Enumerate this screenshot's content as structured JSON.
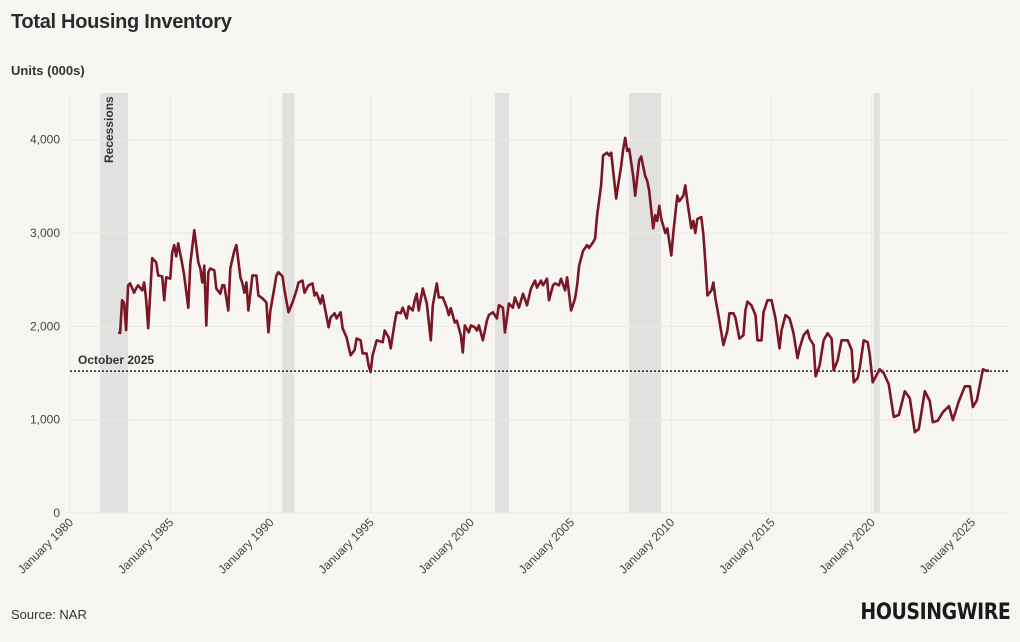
{
  "title": "Total Housing Inventory",
  "source": "Source: NAR",
  "logo": "HOUSINGWIRE",
  "colors": {
    "line": "#7a1626",
    "recession": "#e2e1df",
    "background": "#f7f6f3",
    "grid": "#ebe9e5",
    "reference": "#222222"
  },
  "chart_data": {
    "type": "line",
    "title": "Total Housing Inventory",
    "ylabel": "Units (000s)",
    "xlabel": "",
    "xlim": [
      1980,
      2026.9
    ],
    "ylim": [
      0,
      4500
    ],
    "grid": true,
    "y_ticks": [
      0,
      1000,
      2000,
      3000,
      4000
    ],
    "y_tick_labels": [
      "0",
      "1,000",
      "2,000",
      "3,000",
      "4,000"
    ],
    "x_ticks": [
      1980,
      1985,
      1990,
      1995,
      2000,
      2005,
      2010,
      2015,
      2020,
      2025
    ],
    "x_tick_labels": [
      "January 1980",
      "January 1985",
      "January 1990",
      "January 1995",
      "January 2000",
      "January 2005",
      "January 2010",
      "January 2015",
      "January 2020",
      "January 2025"
    ],
    "recessions_label": "Recessions",
    "recessions": [
      [
        1981.5,
        1982.9
      ],
      [
        1990.6,
        1991.2
      ],
      [
        2001.2,
        2001.9
      ],
      [
        2007.9,
        2009.5
      ],
      [
        2020.1,
        2020.4
      ]
    ],
    "reference_line": {
      "label": "October 2025",
      "value": 1520
    },
    "series": [
      {
        "points": [
          [
            1982.4,
            1935
          ],
          [
            1982.5,
            1930
          ],
          [
            1982.6,
            2280
          ],
          [
            1982.7,
            2250
          ],
          [
            1982.8,
            1960
          ],
          [
            1982.9,
            2440
          ],
          [
            1983.0,
            2460
          ],
          [
            1983.2,
            2360
          ],
          [
            1983.3,
            2405
          ],
          [
            1983.4,
            2440
          ],
          [
            1983.6,
            2385
          ],
          [
            1983.7,
            2470
          ],
          [
            1983.8,
            2280
          ],
          [
            1983.9,
            1980
          ],
          [
            1984.1,
            2730
          ],
          [
            1984.3,
            2685
          ],
          [
            1984.4,
            2545
          ],
          [
            1984.6,
            2535
          ],
          [
            1984.7,
            2280
          ],
          [
            1984.8,
            2525
          ],
          [
            1985.0,
            2510
          ],
          [
            1985.1,
            2790
          ],
          [
            1985.2,
            2870
          ],
          [
            1985.3,
            2750
          ],
          [
            1985.4,
            2890
          ],
          [
            1985.6,
            2670
          ],
          [
            1985.7,
            2545
          ],
          [
            1985.9,
            2200
          ],
          [
            1986.0,
            2670
          ],
          [
            1986.2,
            3030
          ],
          [
            1986.4,
            2685
          ],
          [
            1986.5,
            2620
          ],
          [
            1986.6,
            2470
          ],
          [
            1986.7,
            2650
          ],
          [
            1986.8,
            2010
          ],
          [
            1986.9,
            2580
          ],
          [
            1987.0,
            2620
          ],
          [
            1987.2,
            2600
          ],
          [
            1987.3,
            2405
          ],
          [
            1987.5,
            2350
          ],
          [
            1987.6,
            2440
          ],
          [
            1987.7,
            2440
          ],
          [
            1987.9,
            2170
          ],
          [
            1988.0,
            2620
          ],
          [
            1988.2,
            2810
          ],
          [
            1988.3,
            2870
          ],
          [
            1988.5,
            2525
          ],
          [
            1988.6,
            2460
          ],
          [
            1988.7,
            2360
          ],
          [
            1988.8,
            2470
          ],
          [
            1988.9,
            2170
          ],
          [
            1989.1,
            2545
          ],
          [
            1989.3,
            2545
          ],
          [
            1989.4,
            2330
          ],
          [
            1989.6,
            2300
          ],
          [
            1989.8,
            2255
          ],
          [
            1989.9,
            1935
          ],
          [
            1990.0,
            2170
          ],
          [
            1990.2,
            2415
          ],
          [
            1990.3,
            2545
          ],
          [
            1990.4,
            2580
          ],
          [
            1990.6,
            2535
          ],
          [
            1990.7,
            2385
          ],
          [
            1990.9,
            2150
          ],
          [
            1991.1,
            2255
          ],
          [
            1991.3,
            2385
          ],
          [
            1991.4,
            2470
          ],
          [
            1991.6,
            2490
          ],
          [
            1991.7,
            2360
          ],
          [
            1991.9,
            2440
          ],
          [
            1992.1,
            2460
          ],
          [
            1992.2,
            2330
          ],
          [
            1992.3,
            2360
          ],
          [
            1992.5,
            2245
          ],
          [
            1992.6,
            2330
          ],
          [
            1992.9,
            1990
          ],
          [
            1993.0,
            2095
          ],
          [
            1993.2,
            2140
          ],
          [
            1993.3,
            2085
          ],
          [
            1993.5,
            2150
          ],
          [
            1993.6,
            1980
          ],
          [
            1993.8,
            1880
          ],
          [
            1994.0,
            1690
          ],
          [
            1994.2,
            1745
          ],
          [
            1994.3,
            1870
          ],
          [
            1994.5,
            1850
          ],
          [
            1994.6,
            1710
          ],
          [
            1994.8,
            1710
          ],
          [
            1994.9,
            1580
          ],
          [
            1995.0,
            1510
          ],
          [
            1995.1,
            1690
          ],
          [
            1995.3,
            1850
          ],
          [
            1995.6,
            1830
          ],
          [
            1995.7,
            1955
          ],
          [
            1995.9,
            1880
          ],
          [
            1996.0,
            1765
          ],
          [
            1996.2,
            2040
          ],
          [
            1996.3,
            2150
          ],
          [
            1996.5,
            2140
          ],
          [
            1996.6,
            2200
          ],
          [
            1996.8,
            2085
          ],
          [
            1996.9,
            2215
          ],
          [
            1997.1,
            2170
          ],
          [
            1997.2,
            2280
          ],
          [
            1997.3,
            2350
          ],
          [
            1997.4,
            2170
          ],
          [
            1997.6,
            2405
          ],
          [
            1997.8,
            2245
          ],
          [
            1998.0,
            1850
          ],
          [
            1998.1,
            2225
          ],
          [
            1998.3,
            2460
          ],
          [
            1998.4,
            2310
          ],
          [
            1998.6,
            2310
          ],
          [
            1998.8,
            2200
          ],
          [
            1998.9,
            2120
          ],
          [
            1999.0,
            2195
          ],
          [
            1999.2,
            2040
          ],
          [
            1999.3,
            2060
          ],
          [
            1999.5,
            1905
          ],
          [
            1999.6,
            1720
          ],
          [
            1999.7,
            2010
          ],
          [
            1999.9,
            1935
          ],
          [
            2000.0,
            2010
          ],
          [
            2000.2,
            1990
          ],
          [
            2000.3,
            1955
          ],
          [
            2000.4,
            2010
          ],
          [
            2000.6,
            1850
          ],
          [
            2000.8,
            2060
          ],
          [
            2000.9,
            2120
          ],
          [
            2001.1,
            2150
          ],
          [
            2001.3,
            2085
          ],
          [
            2001.4,
            2225
          ],
          [
            2001.6,
            2200
          ],
          [
            2001.7,
            1935
          ],
          [
            2001.9,
            2245
          ],
          [
            2002.1,
            2200
          ],
          [
            2002.2,
            2310
          ],
          [
            2002.4,
            2200
          ],
          [
            2002.6,
            2350
          ],
          [
            2002.8,
            2225
          ],
          [
            2003.0,
            2405
          ],
          [
            2003.2,
            2490
          ],
          [
            2003.3,
            2415
          ],
          [
            2003.5,
            2490
          ],
          [
            2003.6,
            2440
          ],
          [
            2003.8,
            2510
          ],
          [
            2003.9,
            2280
          ],
          [
            2004.1,
            2440
          ],
          [
            2004.2,
            2460
          ],
          [
            2004.4,
            2440
          ],
          [
            2004.5,
            2510
          ],
          [
            2004.7,
            2385
          ],
          [
            2004.8,
            2525
          ],
          [
            2005.0,
            2170
          ],
          [
            2005.2,
            2300
          ],
          [
            2005.3,
            2440
          ],
          [
            2005.4,
            2650
          ],
          [
            2005.6,
            2810
          ],
          [
            2005.8,
            2870
          ],
          [
            2005.9,
            2840
          ],
          [
            2006.1,
            2900
          ],
          [
            2006.2,
            2940
          ],
          [
            2006.3,
            3190
          ],
          [
            2006.5,
            3510
          ],
          [
            2006.6,
            3830
          ],
          [
            2006.8,
            3860
          ],
          [
            2006.9,
            3830
          ],
          [
            2007.0,
            3860
          ],
          [
            2007.15,
            3560
          ],
          [
            2007.25,
            3370
          ],
          [
            2007.3,
            3450
          ],
          [
            2007.5,
            3720
          ],
          [
            2007.6,
            3900
          ],
          [
            2007.7,
            4020
          ],
          [
            2007.8,
            3880
          ],
          [
            2007.9,
            3900
          ],
          [
            2008.1,
            3610
          ],
          [
            2008.2,
            3400
          ],
          [
            2008.4,
            3780
          ],
          [
            2008.5,
            3820
          ],
          [
            2008.7,
            3610
          ],
          [
            2008.8,
            3560
          ],
          [
            2008.9,
            3450
          ],
          [
            2009.1,
            3050
          ],
          [
            2009.2,
            3190
          ],
          [
            2009.3,
            3130
          ],
          [
            2009.4,
            3290
          ],
          [
            2009.5,
            3150
          ],
          [
            2009.7,
            3000
          ],
          [
            2009.8,
            3050
          ],
          [
            2010.0,
            2760
          ],
          [
            2010.1,
            3000
          ],
          [
            2010.3,
            3400
          ],
          [
            2010.4,
            3340
          ],
          [
            2010.6,
            3400
          ],
          [
            2010.7,
            3510
          ],
          [
            2010.8,
            3340
          ],
          [
            2011.0,
            3050
          ],
          [
            2011.1,
            3130
          ],
          [
            2011.2,
            3000
          ],
          [
            2011.3,
            3150
          ],
          [
            2011.5,
            3170
          ],
          [
            2011.6,
            2990
          ],
          [
            2011.7,
            2680
          ],
          [
            2011.8,
            2330
          ],
          [
            2012.0,
            2385
          ],
          [
            2012.1,
            2470
          ],
          [
            2012.2,
            2300
          ],
          [
            2012.4,
            2060
          ],
          [
            2012.6,
            1800
          ],
          [
            2012.8,
            1955
          ],
          [
            2012.9,
            2140
          ],
          [
            2013.1,
            2140
          ],
          [
            2013.2,
            2095
          ],
          [
            2013.4,
            1870
          ],
          [
            2013.6,
            1905
          ],
          [
            2013.7,
            2170
          ],
          [
            2013.8,
            2265
          ],
          [
            2014.0,
            2225
          ],
          [
            2014.2,
            2120
          ],
          [
            2014.3,
            1850
          ],
          [
            2014.5,
            1850
          ],
          [
            2014.6,
            2150
          ],
          [
            2014.8,
            2280
          ],
          [
            2015.0,
            2280
          ],
          [
            2015.2,
            2085
          ],
          [
            2015.4,
            1765
          ],
          [
            2015.5,
            1955
          ],
          [
            2015.7,
            2120
          ],
          [
            2015.9,
            2085
          ],
          [
            2016.0,
            2010
          ],
          [
            2016.1,
            1925
          ],
          [
            2016.3,
            1660
          ],
          [
            2016.4,
            1765
          ],
          [
            2016.6,
            1905
          ],
          [
            2016.8,
            1955
          ],
          [
            2016.9,
            1870
          ],
          [
            2017.1,
            1800
          ],
          [
            2017.2,
            1465
          ],
          [
            2017.4,
            1580
          ],
          [
            2017.6,
            1850
          ],
          [
            2017.8,
            1925
          ],
          [
            2018.0,
            1870
          ],
          [
            2018.1,
            1530
          ],
          [
            2018.3,
            1635
          ],
          [
            2018.5,
            1850
          ],
          [
            2018.8,
            1850
          ],
          [
            2019.0,
            1745
          ],
          [
            2019.1,
            1400
          ],
          [
            2019.3,
            1445
          ],
          [
            2019.4,
            1550
          ],
          [
            2019.6,
            1850
          ],
          [
            2019.8,
            1830
          ],
          [
            2019.9,
            1700
          ],
          [
            2020.05,
            1400
          ],
          [
            2020.4,
            1540
          ],
          [
            2020.6,
            1500
          ],
          [
            2020.85,
            1380
          ],
          [
            2021.1,
            1030
          ],
          [
            2021.35,
            1050
          ],
          [
            2021.65,
            1305
          ],
          [
            2021.9,
            1230
          ],
          [
            2022.15,
            866
          ],
          [
            2022.35,
            900
          ],
          [
            2022.65,
            1305
          ],
          [
            2022.9,
            1200
          ],
          [
            2023.05,
            973
          ],
          [
            2023.3,
            990
          ],
          [
            2023.55,
            1080
          ],
          [
            2023.85,
            1145
          ],
          [
            2024.05,
            995
          ],
          [
            2024.35,
            1200
          ],
          [
            2024.65,
            1358
          ],
          [
            2024.9,
            1358
          ],
          [
            2025.05,
            1135
          ],
          [
            2025.25,
            1210
          ],
          [
            2025.55,
            1540
          ],
          [
            2025.75,
            1520
          ],
          [
            2025.85,
            1530
          ]
        ]
      }
    ]
  }
}
